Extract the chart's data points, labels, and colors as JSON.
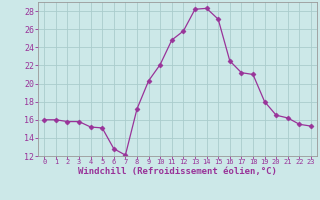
{
  "x": [
    0,
    1,
    2,
    3,
    4,
    5,
    6,
    7,
    8,
    9,
    10,
    11,
    12,
    13,
    14,
    15,
    16,
    17,
    18,
    19,
    20,
    21,
    22,
    23
  ],
  "y": [
    16,
    16,
    15.8,
    15.8,
    15.2,
    15.1,
    12.8,
    12.1,
    17.2,
    20.3,
    22.1,
    24.8,
    25.8,
    28.2,
    28.3,
    27.1,
    22.5,
    21.2,
    21.0,
    18.0,
    16.5,
    16.2,
    15.5,
    15.3
  ],
  "line_color": "#993399",
  "marker": "D",
  "marker_size": 2.5,
  "bg_color": "#cce8e8",
  "grid_color": "#aacccc",
  "xlabel": "Windchill (Refroidissement éolien,°C)",
  "xlabel_color": "#993399",
  "tick_color": "#993399",
  "spine_color": "#999999",
  "ylim": [
    12,
    29
  ],
  "yticks": [
    12,
    14,
    16,
    18,
    20,
    22,
    24,
    26,
    28
  ],
  "xlim": [
    -0.5,
    23.5
  ],
  "xticks": [
    0,
    1,
    2,
    3,
    4,
    5,
    6,
    7,
    8,
    9,
    10,
    11,
    12,
    13,
    14,
    15,
    16,
    17,
    18,
    19,
    20,
    21,
    22,
    23
  ],
  "xlabel_fontsize": 6.5,
  "xtick_fontsize": 5.0,
  "ytick_fontsize": 6.0
}
